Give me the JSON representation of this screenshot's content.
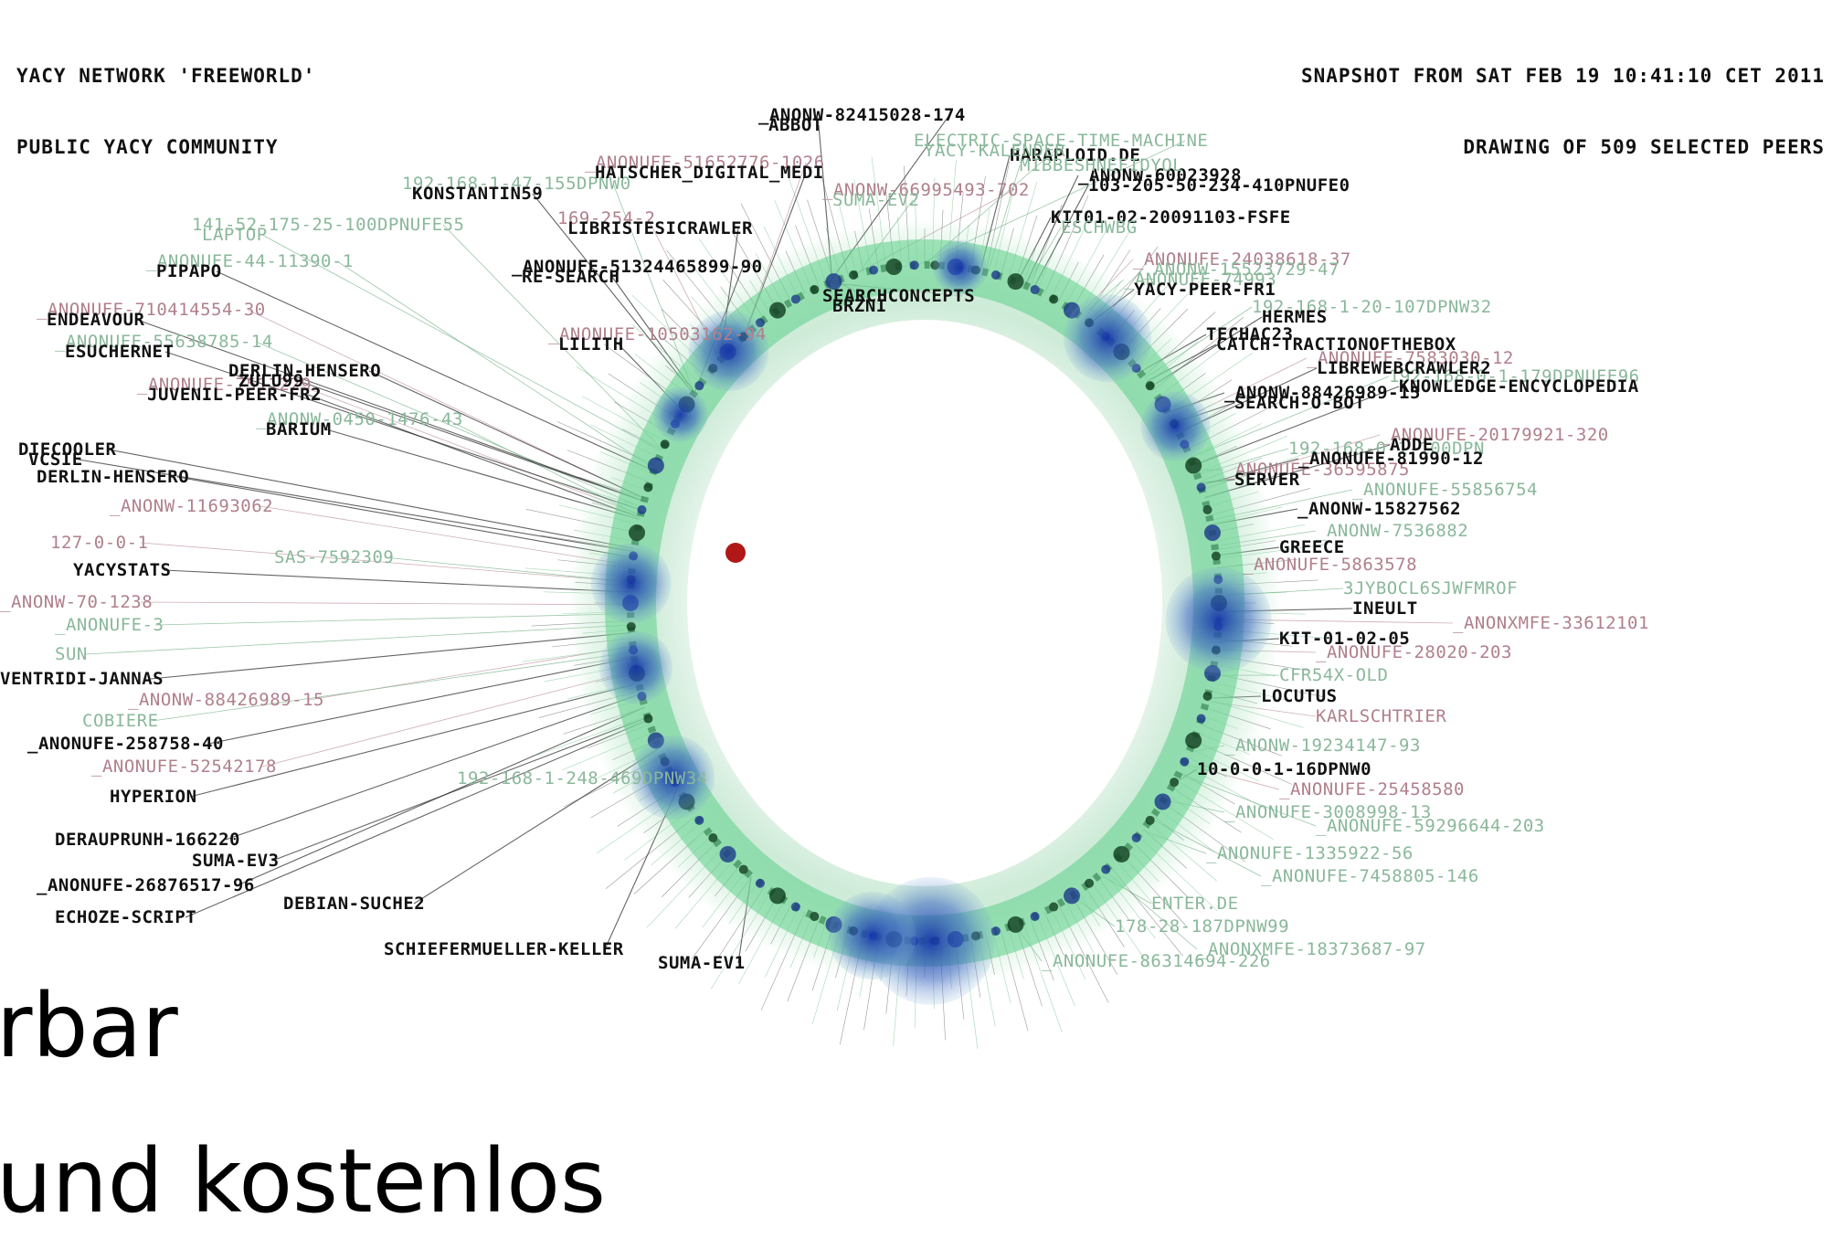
{
  "header": {
    "network_line": "YACY NETWORK 'FREEWORLD'",
    "community_line": "PUBLIC YACY COMMUNITY",
    "snapshot_line": "SNAPSHOT FROM SAT FEB 19 10:41:10 CET 2011",
    "drawing_line": "DRAWING OF 509 SELECTED PEERS"
  },
  "overlay": {
    "line1": "rbar",
    "line2": "und kostenlos"
  },
  "colors": {
    "senior_peer": "#111111",
    "junior_peer": "#8ab89a",
    "offline_peer": "#b0808c",
    "ring": "#5fd08a",
    "peer_dot": "#1a3a8a"
  },
  "peers": {
    "senior": [
      "_ANONW-82415028-174",
      "HARAPLOID.DE",
      "_ANONW-60023928",
      "KIT01-02-20091103-FSFE",
      "_ANONUFE-51324465899-90",
      "SEARCHCONCEPTS",
      "TECHAC23",
      "DERLIN-HENSERO",
      "_ANONW-88426989-15",
      "DIECOOLER",
      "DERLIN-HENSERO",
      "_ANONW-15827562",
      "GREECE",
      "YACYSTATS",
      "INEULT",
      "KIT-01-02-05",
      "VENTRIDI-JANNAS",
      "LOCUTUS",
      "_ANONUFE-258758-40",
      "10-0-0-1-16DPNW0",
      "HYPERION",
      "DERAUPRUNH-166220",
      "SUMA-EV3",
      "_ANONUFE-26876517-96",
      "DEBIAN-SUCHE2",
      "ECHOZE-SCRIPT",
      "SCHIEFERMUELLER-KELLER",
      "SUMA-EV1",
      "ABBOT",
      "HATSCHER_DIGITAL_MEDI",
      "KONSTANTIN59",
      "103-205-50-234-410PNUFE0",
      "LIBRISTESICRAWLER",
      "PIPAPO",
      "RE-SEARCH",
      "YACY-PEER-FR1",
      "ENDEAVOUR",
      "BRZNI",
      "HERMES",
      "LILITH",
      "CATCH-TRACTIONOFTHEBOX",
      "ESUCHERNET",
      "LIBREWEBCRAWLER2",
      "ZULU99",
      "KNOWLEDGE-ENCYCLOPEDIA",
      "JUVENIL-PEER-FR2",
      "SEARCH-O-BOT",
      "BARIUM",
      "ADDE",
      "VCSIE",
      "_ANONUFE-81990-12",
      "SERVER"
    ],
    "junior": [
      "ELECTRIC-SPACE-TIME-MACHINE",
      "192-168-1-47-155DPNW0",
      "141-52-175-25-100DPNUFE55",
      "_ANONUFE-44-11390-1",
      "_ANONUFE-74993",
      "192-168-1-20-107DPNW32",
      "_ANONUFE-55638785-14",
      "192-168-0-1-179DPNUFE96",
      "_ANONW-0450-1476-43",
      "192-168-0-1-100DPN",
      "_ANONUFE-55856754",
      "_ANONW-7536882",
      "SAS-7592309",
      "3JYBOCL6SJWFMROF",
      "_ANONUFE-3",
      "SUN",
      "CFR54X-OLD",
      "COBIERE",
      "_ANONW-19234147-93",
      "192-168-1-248-469DPNW34",
      "_ANONUFE-3008998-13",
      "_ANONUFE-59296644-203",
      "_ANONUFE-1335922-56",
      "_ANONUFE-7458805-146",
      "ENTER.DE",
      "178-28-187DPNW99",
      "_ANONXMFE-18373687-97",
      "_ANONUFE-86314694-226",
      "YACY-KALENDER",
      "MIBBESHNEFIDYOL",
      "SUMA-EV2",
      "LAPTOP",
      "ESCHWBG",
      "_ANONW-15523729-47"
    ],
    "offline": [
      "_ANONUFE-51652776-1026",
      "_ANONW-66995493-702",
      "169-254-2",
      "_ANONUFE-24038618-37",
      "_ANONUFE-710414554-30",
      "_ANONUFE-10503162-94",
      "_ANONUFE-7583030-12",
      "_ANONUFE-7511229",
      "_ANONUFE-20179921-320",
      "_ANONUFE-36595875",
      "_ANONW-11693062",
      "127-0-0-1",
      "_ANONUFE-5863578",
      "_ANONW-70-1238",
      "_ANONXMFE-33612101",
      "_ANONUFE-28020-203",
      "_ANONW-88426989-15",
      "KARLSCHTRIER",
      "_ANONUFE-52542178",
      "_ANONUFE-25458580"
    ]
  }
}
